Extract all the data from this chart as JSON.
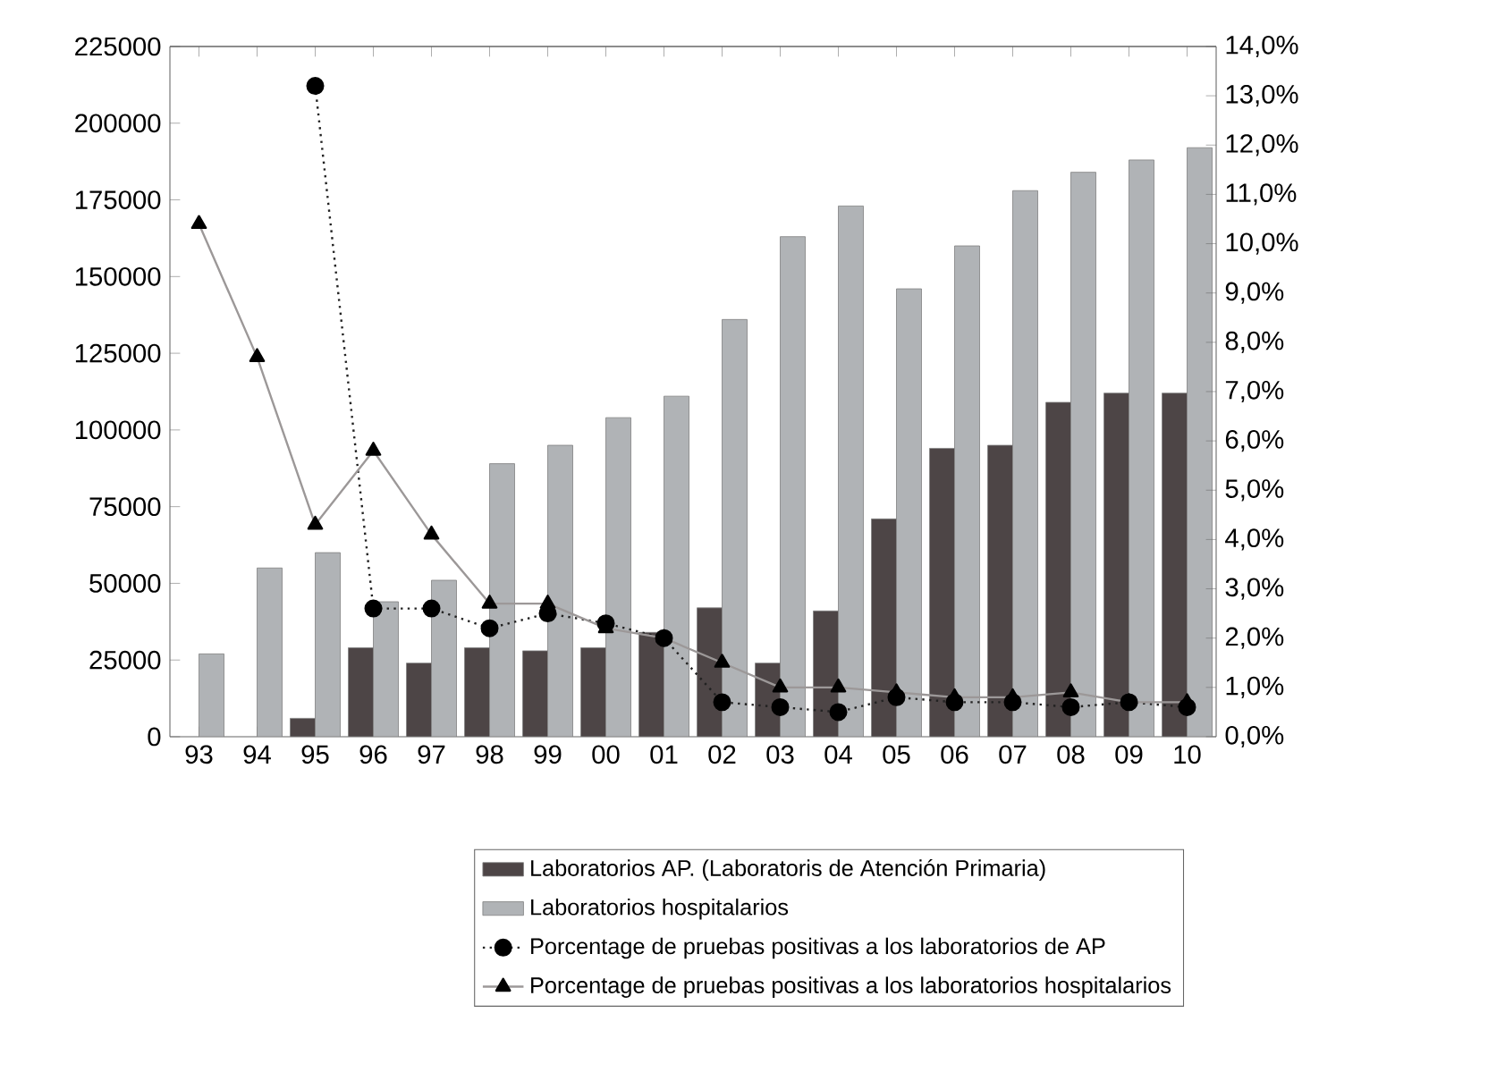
{
  "chart_data": {
    "type": "bar",
    "categories": [
      "93",
      "94",
      "95",
      "96",
      "97",
      "98",
      "99",
      "00",
      "01",
      "02",
      "03",
      "04",
      "05",
      "06",
      "07",
      "08",
      "09",
      "10"
    ],
    "series": [
      {
        "name": "Laboratorios AP. (Laboratoris de Atención Primaria)",
        "color": "#4d4546",
        "values": [
          null,
          null,
          6000,
          29000,
          24000,
          29000,
          28000,
          29000,
          34000,
          42000,
          24000,
          41000,
          71000,
          94000,
          95000,
          109000,
          112000,
          112000
        ]
      },
      {
        "name": "Laboratorios hospitalarios",
        "color": "#b0b3b6",
        "values": [
          27000,
          55000,
          60000,
          44000,
          51000,
          89000,
          95000,
          104000,
          111000,
          136000,
          163000,
          173000,
          146000,
          160000,
          178000,
          184000,
          188000,
          192000
        ]
      },
      {
        "name": "Porcentage de pruebas positivas a los laboratorios de AP",
        "type": "line",
        "axis": "y2",
        "color": "#222222",
        "marker": "circle",
        "line_style": "dotted",
        "values": [
          null,
          null,
          13.2,
          2.6,
          2.6,
          2.2,
          2.5,
          2.3,
          2.0,
          0.7,
          0.6,
          0.5,
          0.8,
          0.7,
          0.7,
          0.6,
          0.7,
          0.6
        ]
      },
      {
        "name": "Porcentage de pruebas positivas a los laboratorios hospitalarios",
        "type": "line",
        "axis": "y2",
        "color": "#9c9898",
        "marker": "triangle",
        "line_style": "solid",
        "values": [
          10.4,
          7.7,
          4.3,
          5.8,
          4.1,
          2.7,
          2.7,
          2.2,
          2.0,
          1.5,
          1.0,
          1.0,
          0.9,
          0.8,
          0.8,
          0.9,
          0.7,
          0.7
        ]
      }
    ],
    "ylim": [
      0,
      225000
    ],
    "yticks": [
      0,
      25000,
      50000,
      75000,
      100000,
      125000,
      150000,
      175000,
      200000,
      225000
    ],
    "y2lim": [
      0,
      14
    ],
    "y2ticks": [
      {
        "value": 0,
        "label": "0,0%"
      },
      {
        "value": 1,
        "label": "1,0%"
      },
      {
        "value": 2,
        "label": "2,0%"
      },
      {
        "value": 3,
        "label": "3,0%"
      },
      {
        "value": 4,
        "label": "4,0%"
      },
      {
        "value": 5,
        "label": "5,0%"
      },
      {
        "value": 6,
        "label": "6,0%"
      },
      {
        "value": 7,
        "label": "7,0%"
      },
      {
        "value": 8,
        "label": "8,0%"
      },
      {
        "value": 9,
        "label": "9,0%"
      },
      {
        "value": 10,
        "label": "10,0%"
      },
      {
        "value": 11,
        "label": "11,0%"
      },
      {
        "value": 12,
        "label": "12,0%"
      },
      {
        "value": 13,
        "label": "13,0%"
      },
      {
        "value": 14,
        "label": "14,0%"
      }
    ],
    "legend": "bottom"
  }
}
